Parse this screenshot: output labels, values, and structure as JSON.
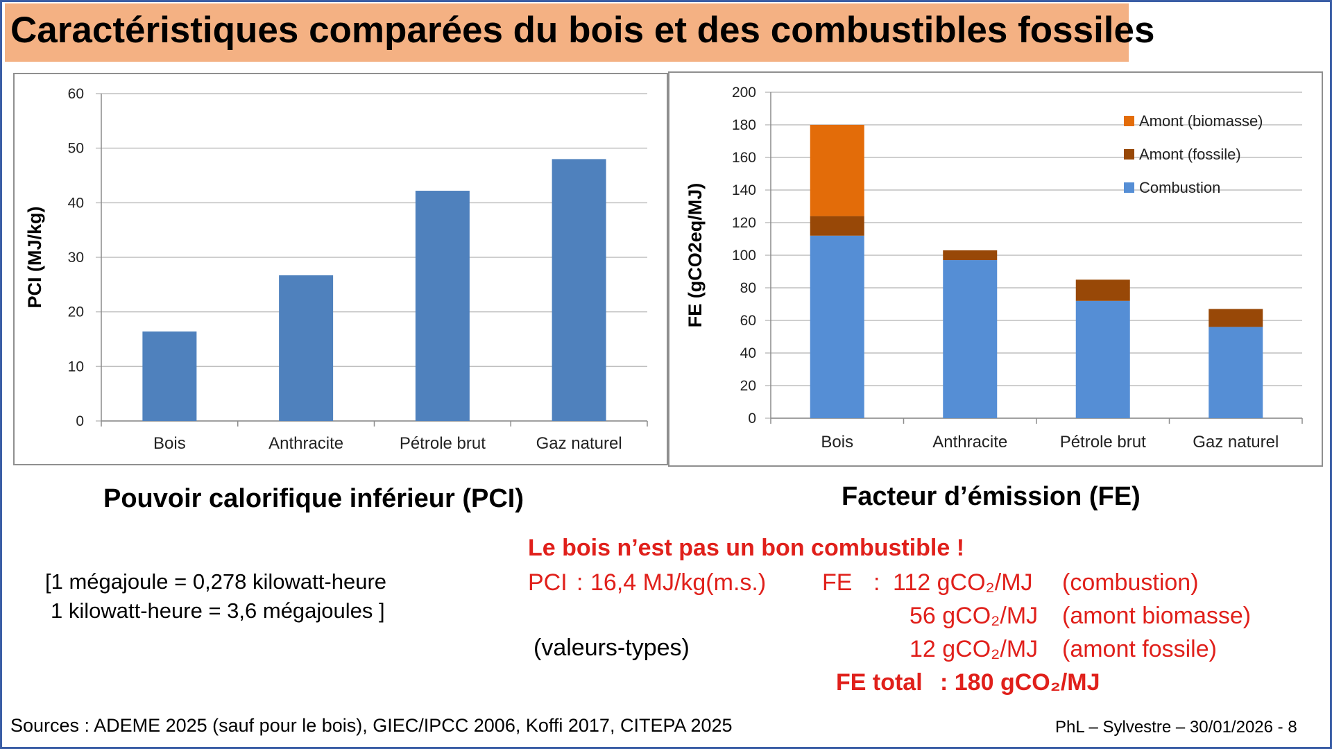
{
  "title": "Caractéristiques comparées du bois et des combustibles fossiles",
  "chart_data": [
    {
      "type": "bar",
      "categories": [
        "Bois",
        "Anthracite",
        "Pétrole brut",
        "Gaz naturel"
      ],
      "values": [
        16.4,
        26.7,
        42.2,
        48
      ],
      "ylabel": "PCI  (MJ/kg)",
      "ylim": [
        0,
        60
      ],
      "yticks": [
        0,
        10,
        20,
        30,
        40,
        50,
        60
      ],
      "grid": true,
      "color": "#4f81bd"
    },
    {
      "type": "bar",
      "stacked": true,
      "categories": [
        "Bois",
        "Anthracite",
        "Pétrole brut",
        "Gaz naturel"
      ],
      "series": [
        {
          "name": "Combustion",
          "values": [
            112,
            97,
            72,
            56
          ],
          "color": "#558ed5"
        },
        {
          "name": "Amont (fossile)",
          "values": [
            12,
            6,
            13,
            11
          ],
          "color": "#984807"
        },
        {
          "name": "Amont (biomasse)",
          "values": [
            56,
            0,
            0,
            0
          ],
          "color": "#e36c09"
        }
      ],
      "ylabel": "FE (gCO2eq/MJ)",
      "ylim": [
        0,
        200
      ],
      "yticks": [
        0,
        20,
        40,
        60,
        80,
        100,
        120,
        140,
        160,
        180,
        200
      ],
      "grid": true,
      "legend_position": "top-right"
    }
  ],
  "captions": {
    "pci": "Pouvoir calorifique inférieur (PCI)",
    "fe": "Facteur d’émission (FE)"
  },
  "conversion": {
    "line1": "[1 mégajoule = 0,278 kilowatt-heure",
    "line2": "1 kilowatt-heure = 3,6 mégajoules ]"
  },
  "conclusion": {
    "headline": "Le bois n’est pas un bon combustible !",
    "pci_label": "PCI",
    "pci_sep": ":",
    "pci_value": "16,4 MJ/kg(m.s.)",
    "typical": "(valeurs-types)",
    "fe_label": "FE",
    "fe_sep": ":",
    "fe_combustion_value": "112 gCO₂/MJ",
    "fe_combustion_label": "(combustion)",
    "fe_biomass_value": "56 gCO₂/MJ",
    "fe_biomass_label": "(amont biomasse)",
    "fe_fossil_value": "12 gCO₂/MJ",
    "fe_fossil_label": "(amont fossile)",
    "fe_total_label": "FE total",
    "fe_total_value": ": 180 gCO₂/MJ"
  },
  "sources": "Sources :  ADEME 2025 (sauf pour le bois), GIEC/IPCC 2006, Koffi 2017, CITEPA 2025",
  "footer": "PhL – Sylvestre – 30/01/2026 - 8"
}
